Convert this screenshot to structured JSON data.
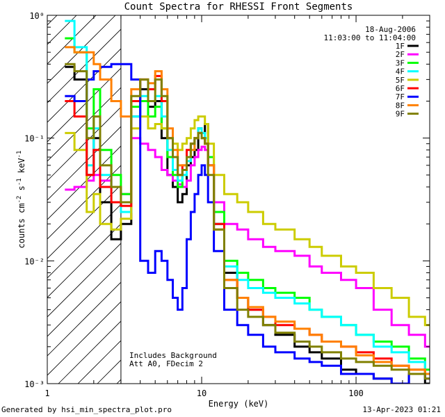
{
  "chart_data": {
    "type": "line",
    "title": "Count Spectra for RHESSI Front Segments",
    "xlabel": "Energy (keV)",
    "ylabel_parts": [
      "counts cm",
      "-2",
      " s",
      "-1",
      " keV",
      "-1"
    ],
    "xscale": "log",
    "yscale": "log",
    "xlim": [
      1,
      300
    ],
    "ylim": [
      0.001,
      1
    ],
    "x_ticks": [
      {
        "v": 1,
        "label": "1"
      },
      {
        "v": 10,
        "label": "10"
      },
      {
        "v": 100,
        "label": "100"
      }
    ],
    "y_ticks": [
      {
        "v": 1,
        "label": "10⁰"
      },
      {
        "v": 0.1,
        "label": "10⁻¹"
      },
      {
        "v": 0.01,
        "label": "10⁻²"
      },
      {
        "v": 0.001,
        "label": "10⁻³"
      }
    ],
    "shaded_region_max_energy": 3,
    "legend_header": [
      "18-Aug-2006",
      "11:03:00 to 11:04:00"
    ],
    "annotations": [
      "Includes Background",
      "Att A0, FDecim 2"
    ],
    "series": [
      {
        "name": "1F",
        "color": "#000000",
        "energies": [
          1.3,
          1.5,
          1.8,
          2.0,
          2.2,
          2.6,
          3.0,
          3.5,
          4.0,
          4.5,
          5.0,
          5.5,
          6.0,
          6.5,
          7.0,
          7.5,
          8.0,
          8.5,
          9.0,
          9.5,
          10.0,
          10.5,
          11.0,
          12.0,
          14.0,
          17.0,
          20.0,
          25.0,
          30.0,
          40.0,
          50.0,
          60.0,
          80.0,
          100.0,
          130.0,
          170.0,
          220.0,
          280.0
        ],
        "values": [
          0.38,
          0.3,
          0.05,
          0.1,
          0.03,
          0.015,
          0.02,
          0.15,
          0.25,
          0.18,
          0.2,
          0.1,
          0.05,
          0.04,
          0.03,
          0.035,
          0.06,
          0.07,
          0.08,
          0.12,
          0.11,
          0.13,
          0.06,
          0.02,
          0.008,
          0.005,
          0.004,
          0.003,
          0.0025,
          0.002,
          0.0018,
          0.0016,
          0.0013,
          0.0012,
          0.0011,
          0.001,
          0.0012,
          0.001
        ]
      },
      {
        "name": "2F",
        "color": "#ff00ff",
        "energies": [
          1.3,
          1.5,
          1.8,
          2.0,
          2.2,
          2.6,
          3.0,
          3.5,
          4.0,
          4.5,
          5.0,
          5.5,
          6.0,
          6.5,
          7.0,
          7.5,
          8.0,
          8.5,
          9.0,
          9.5,
          10.0,
          10.5,
          11.0,
          12.0,
          14.0,
          17.0,
          20.0,
          25.0,
          30.0,
          40.0,
          50.0,
          60.0,
          80.0,
          100.0,
          130.0,
          170.0,
          220.0,
          280.0
        ],
        "values": [
          0.038,
          0.04,
          0.045,
          0.05,
          0.045,
          0.04,
          0.035,
          0.1,
          0.09,
          0.08,
          0.07,
          0.055,
          0.05,
          0.045,
          0.042,
          0.04,
          0.045,
          0.06,
          0.07,
          0.08,
          0.085,
          0.08,
          0.06,
          0.03,
          0.02,
          0.018,
          0.015,
          0.013,
          0.012,
          0.011,
          0.009,
          0.008,
          0.007,
          0.006,
          0.004,
          0.003,
          0.0025,
          0.002
        ]
      },
      {
        "name": "3F",
        "color": "#00ff00",
        "energies": [
          1.3,
          1.5,
          1.8,
          2.0,
          2.2,
          2.6,
          3.0,
          3.5,
          4.0,
          4.5,
          5.0,
          5.5,
          6.0,
          6.5,
          7.0,
          7.5,
          8.0,
          8.5,
          9.0,
          9.5,
          10.0,
          10.5,
          11.0,
          12.0,
          14.0,
          17.0,
          20.0,
          25.0,
          30.0,
          40.0,
          50.0,
          60.0,
          80.0,
          100.0,
          130.0,
          170.0,
          220.0,
          280.0
        ],
        "values": [
          0.65,
          0.5,
          0.12,
          0.25,
          0.08,
          0.05,
          0.035,
          0.18,
          0.2,
          0.15,
          0.18,
          0.12,
          0.07,
          0.05,
          0.04,
          0.05,
          0.07,
          0.09,
          0.1,
          0.11,
          0.1,
          0.09,
          0.07,
          0.025,
          0.01,
          0.008,
          0.007,
          0.006,
          0.0055,
          0.005,
          0.004,
          0.0035,
          0.003,
          0.0025,
          0.0022,
          0.002,
          0.0016,
          0.0013
        ]
      },
      {
        "name": "4F",
        "color": "#00ffff",
        "energies": [
          1.3,
          1.5,
          1.8,
          2.0,
          2.2,
          2.6,
          3.0,
          3.5,
          4.0,
          4.5,
          5.0,
          5.5,
          6.0,
          6.5,
          7.0,
          7.5,
          8.0,
          8.5,
          9.0,
          9.5,
          10.0,
          10.5,
          11.0,
          12.0,
          14.0,
          17.0,
          20.0,
          25.0,
          30.0,
          40.0,
          50.0,
          60.0,
          80.0,
          100.0,
          130.0,
          170.0,
          220.0,
          280.0
        ],
        "values": [
          0.9,
          0.55,
          0.06,
          0.12,
          0.05,
          0.03,
          0.025,
          0.15,
          0.22,
          0.2,
          0.22,
          0.15,
          0.08,
          0.055,
          0.045,
          0.05,
          0.065,
          0.08,
          0.1,
          0.12,
          0.11,
          0.1,
          0.06,
          0.02,
          0.009,
          0.007,
          0.006,
          0.0055,
          0.005,
          0.0045,
          0.004,
          0.0035,
          0.003,
          0.0025,
          0.002,
          0.0018,
          0.0015,
          0.0012
        ]
      },
      {
        "name": "5F",
        "color": "#cccc00",
        "energies": [
          1.3,
          1.5,
          1.8,
          2.0,
          2.2,
          2.6,
          3.0,
          3.5,
          4.0,
          4.5,
          5.0,
          5.5,
          6.0,
          6.5,
          7.0,
          7.5,
          8.0,
          8.5,
          9.0,
          9.5,
          10.0,
          10.5,
          11.0,
          12.0,
          14.0,
          17.0,
          20.0,
          25.0,
          30.0,
          40.0,
          50.0,
          60.0,
          80.0,
          100.0,
          130.0,
          170.0,
          220.0,
          280.0
        ],
        "values": [
          0.11,
          0.08,
          0.025,
          0.035,
          0.02,
          0.018,
          0.022,
          0.12,
          0.15,
          0.12,
          0.13,
          0.12,
          0.1,
          0.09,
          0.08,
          0.09,
          0.1,
          0.12,
          0.14,
          0.15,
          0.15,
          0.13,
          0.09,
          0.05,
          0.035,
          0.03,
          0.025,
          0.02,
          0.018,
          0.015,
          0.013,
          0.011,
          0.009,
          0.008,
          0.006,
          0.005,
          0.0035,
          0.003
        ]
      },
      {
        "name": "6F",
        "color": "#ff0000",
        "energies": [
          1.3,
          1.5,
          1.8,
          2.0,
          2.2,
          2.6,
          3.0,
          3.5,
          4.0,
          4.5,
          5.0,
          5.5,
          6.0,
          6.5,
          7.0,
          7.5,
          8.0,
          8.5,
          9.0,
          9.5,
          10.0,
          10.5,
          11.0,
          12.0,
          14.0,
          17.0,
          20.0,
          25.0,
          30.0,
          40.0,
          50.0,
          60.0,
          80.0,
          100.0,
          130.0,
          170.0,
          220.0,
          280.0
        ],
        "values": [
          0.2,
          0.15,
          0.05,
          0.08,
          0.04,
          0.03,
          0.028,
          0.2,
          0.3,
          0.25,
          0.32,
          0.2,
          0.1,
          0.07,
          0.05,
          0.06,
          0.08,
          0.09,
          0.1,
          0.11,
          0.1,
          0.09,
          0.06,
          0.02,
          0.007,
          0.005,
          0.004,
          0.0035,
          0.003,
          0.0028,
          0.0025,
          0.0022,
          0.002,
          0.0018,
          0.0016,
          0.0014,
          0.0013,
          0.0012
        ]
      },
      {
        "name": "7F",
        "color": "#0000ff",
        "energies": [
          1.3,
          1.5,
          1.8,
          2.0,
          2.2,
          2.6,
          3.0,
          3.5,
          4.0,
          4.5,
          5.0,
          5.5,
          6.0,
          6.5,
          7.0,
          7.5,
          8.0,
          8.5,
          9.0,
          9.5,
          10.0,
          10.5,
          11.0,
          12.0,
          14.0,
          17.0,
          20.0,
          25.0,
          30.0,
          40.0,
          50.0,
          60.0,
          80.0,
          100.0,
          130.0,
          170.0,
          220.0,
          280.0
        ],
        "values": [
          0.22,
          0.2,
          0.3,
          0.35,
          0.38,
          0.4,
          0.4,
          0.3,
          0.01,
          0.008,
          0.012,
          0.01,
          0.007,
          0.005,
          0.004,
          0.006,
          0.015,
          0.025,
          0.035,
          0.05,
          0.06,
          0.05,
          0.03,
          0.012,
          0.004,
          0.003,
          0.0025,
          0.002,
          0.0018,
          0.0016,
          0.0015,
          0.0014,
          0.0012,
          0.0012,
          0.0011,
          0.001,
          0.0012,
          0.0011
        ]
      },
      {
        "name": "8F",
        "color": "#ff8000",
        "energies": [
          1.3,
          1.5,
          1.8,
          2.0,
          2.2,
          2.6,
          3.0,
          3.5,
          4.0,
          4.5,
          5.0,
          5.5,
          6.0,
          6.5,
          7.0,
          7.5,
          8.0,
          8.5,
          9.0,
          9.5,
          10.0,
          10.5,
          11.0,
          12.0,
          14.0,
          17.0,
          20.0,
          25.0,
          30.0,
          40.0,
          50.0,
          60.0,
          80.0,
          100.0,
          130.0,
          170.0,
          220.0,
          280.0
        ],
        "values": [
          0.55,
          0.5,
          0.5,
          0.4,
          0.3,
          0.2,
          0.15,
          0.25,
          0.3,
          0.28,
          0.35,
          0.25,
          0.12,
          0.08,
          0.06,
          0.06,
          0.07,
          0.08,
          0.1,
          0.11,
          0.1,
          0.09,
          0.06,
          0.018,
          0.007,
          0.005,
          0.0042,
          0.0035,
          0.0032,
          0.0028,
          0.0025,
          0.0022,
          0.002,
          0.0017,
          0.0015,
          0.0014,
          0.0013,
          0.0012
        ]
      },
      {
        "name": "9F",
        "color": "#808000",
        "energies": [
          1.3,
          1.5,
          1.8,
          2.0,
          2.2,
          2.6,
          3.0,
          3.5,
          4.0,
          4.5,
          5.0,
          5.5,
          6.0,
          6.5,
          7.0,
          7.5,
          8.0,
          8.5,
          9.0,
          9.5,
          10.0,
          10.5,
          11.0,
          12.0,
          14.0,
          17.0,
          20.0,
          25.0,
          30.0,
          40.0,
          50.0,
          60.0,
          80.0,
          100.0,
          130.0,
          170.0,
          220.0,
          280.0
        ],
        "values": [
          0.4,
          0.35,
          0.1,
          0.15,
          0.06,
          0.04,
          0.03,
          0.22,
          0.3,
          0.2,
          0.3,
          0.22,
          0.1,
          0.07,
          0.05,
          0.055,
          0.07,
          0.09,
          0.1,
          0.11,
          0.1,
          0.09,
          0.05,
          0.018,
          0.006,
          0.004,
          0.0035,
          0.003,
          0.0026,
          0.0022,
          0.002,
          0.0018,
          0.0016,
          0.0015,
          0.0014,
          0.0013,
          0.0012,
          0.0011
        ]
      }
    ]
  },
  "footer": {
    "left": "Generated by hsi_min_spectra_plot.pro",
    "right": "13-Apr-2023 01:21"
  }
}
